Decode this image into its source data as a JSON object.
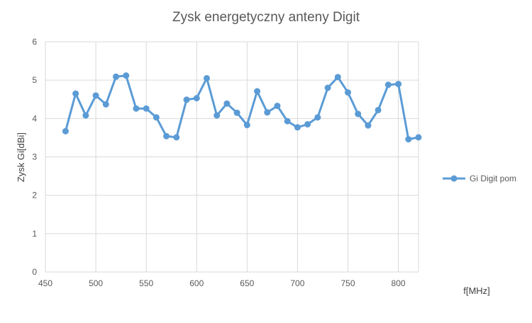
{
  "chart_data": {
    "type": "line",
    "title": "Zysk energetyczny anteny Digit",
    "xlabel": "f[MHz]",
    "ylabel": "Zysk Gi[dBi]",
    "xlim": [
      450,
      820
    ],
    "ylim": [
      0,
      6
    ],
    "x_ticks": [
      "450",
      "500",
      "550",
      "600",
      "650",
      "700",
      "750",
      "800"
    ],
    "y_ticks": [
      "0",
      "1",
      "2",
      "3",
      "4",
      "5",
      "6"
    ],
    "grid": true,
    "legend_position": "right",
    "colors": {
      "series": "#5b9bd5",
      "grid": "#d9d9d9",
      "text": "#595959"
    },
    "series": [
      {
        "name": "Gi Digit pom",
        "marker": "circle",
        "x": [
          470,
          480,
          490,
          500,
          510,
          520,
          530,
          540,
          550,
          560,
          570,
          580,
          590,
          600,
          610,
          620,
          630,
          640,
          650,
          660,
          670,
          680,
          690,
          700,
          710,
          720,
          730,
          740,
          750,
          760,
          770,
          780,
          790,
          800,
          810,
          820
        ],
        "y": [
          3.67,
          4.65,
          4.08,
          4.6,
          4.37,
          5.09,
          5.12,
          4.26,
          4.26,
          4.03,
          3.54,
          3.51,
          4.49,
          4.53,
          5.05,
          4.08,
          4.39,
          4.15,
          3.83,
          4.71,
          4.16,
          4.33,
          3.93,
          3.77,
          3.85,
          4.03,
          4.8,
          5.08,
          4.68,
          4.12,
          3.82,
          4.22,
          4.88,
          4.9,
          3.46,
          3.51
        ]
      }
    ]
  }
}
